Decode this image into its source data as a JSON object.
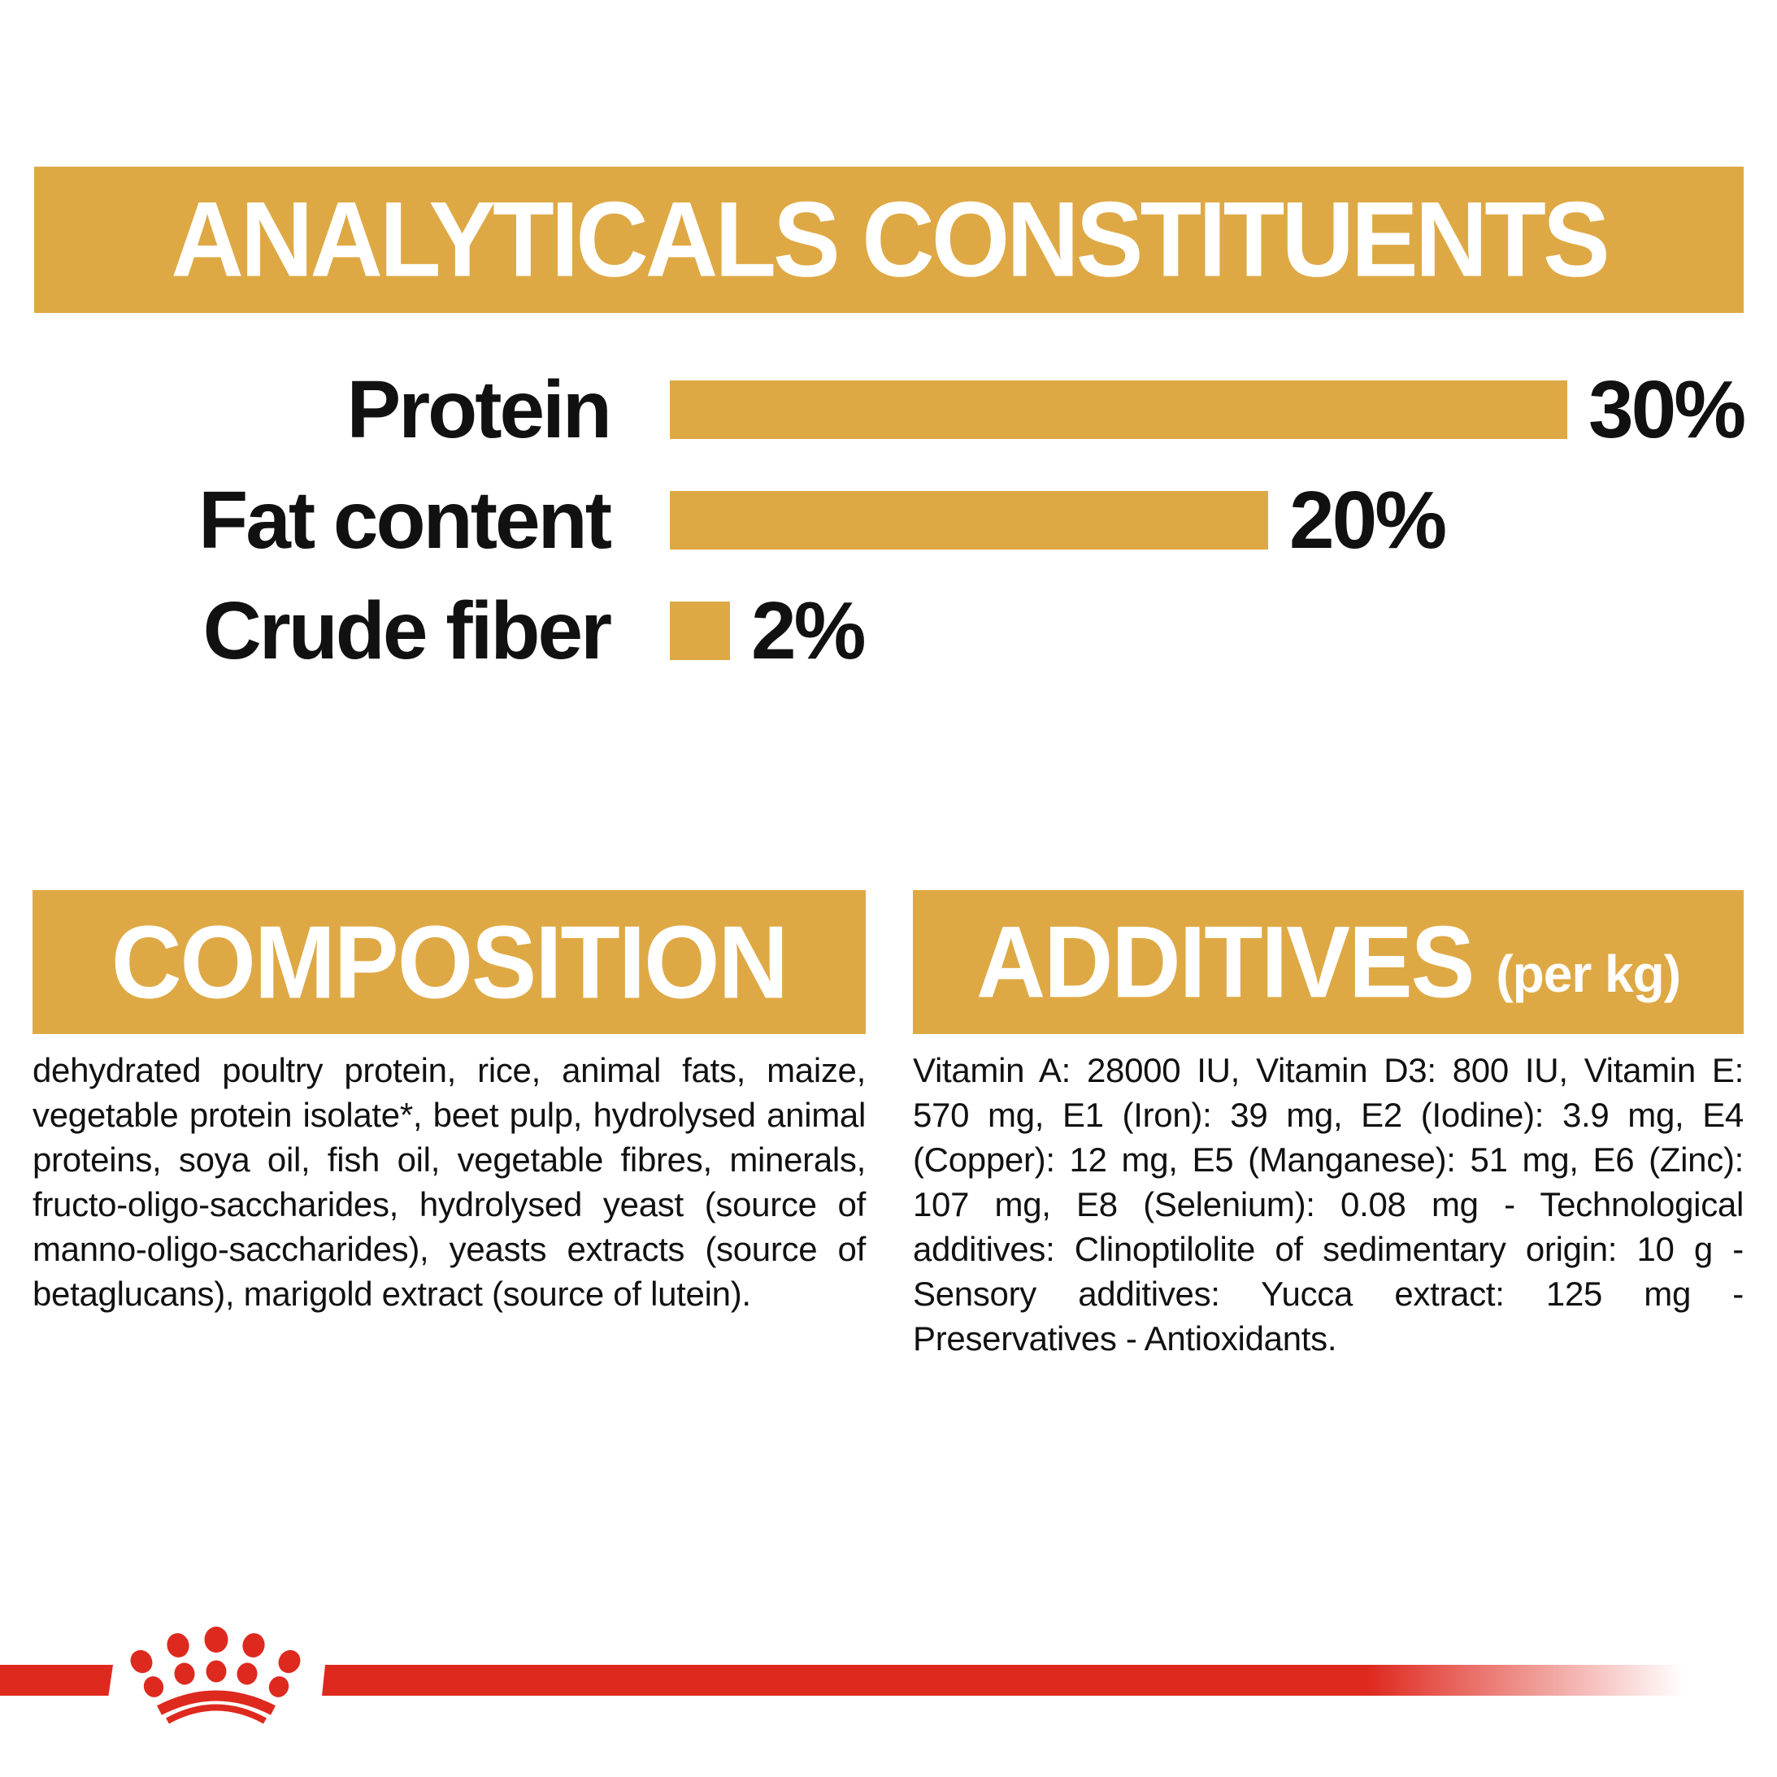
{
  "colors": {
    "gold": "#DEA945",
    "red": "#DE291E",
    "text": "#111111",
    "banner_text": "#FFFFFF",
    "page_bg": "#FFFFFF"
  },
  "header": {
    "title": "ANALYTICALS CONSTITUENTS"
  },
  "chart_data": {
    "type": "bar",
    "orientation": "horizontal",
    "title": "ANALYTICALS CONSTITUENTS",
    "categories": [
      "Protein",
      "Fat content",
      "Crude fiber"
    ],
    "values": [
      30,
      20,
      2
    ],
    "value_labels": [
      "30%",
      "20%",
      "2%"
    ],
    "unit": "%",
    "xlim": [
      0,
      30
    ],
    "grid": false,
    "axis_labels": false,
    "bar_color": "#DEA945",
    "value_label_position": "right-of-bar",
    "category_label_position": "left-of-bar"
  },
  "composition": {
    "title": "COMPOSITION",
    "body": "dehydrated poultry protein, rice, animal fats, maize, vegetable protein isolate*, beet pulp, hydrolysed animal proteins, soya oil, fish oil, vegetable fibres, minerals, fructo-oligo-saccharides, hydrolysed yeast (source of manno-oligo-saccharides), yeasts extracts (source of betaglucans), marigold extract (source of lutein)."
  },
  "additives": {
    "title": "ADDITIVES",
    "title_suffix": "(per kg)",
    "body": "Vitamin A: 28000 IU, Vitamin D3: 800 IU, Vitamin E: 570 mg, E1 (Iron): 39 mg, E2 (Iodine): 3.9 mg, E4 (Copper): 12 mg, E5 (Manganese): 51 mg, E6 (Zinc): 107 mg, E8 (Selenium): 0.08 mg - Technological additives: Clinoptilolite of sedimentary origin: 10 g - Sensory additives: Yucca extract: 125 mg - Preservatives - Antioxidants."
  },
  "footer": {
    "logo": "royal-canin-crown"
  }
}
